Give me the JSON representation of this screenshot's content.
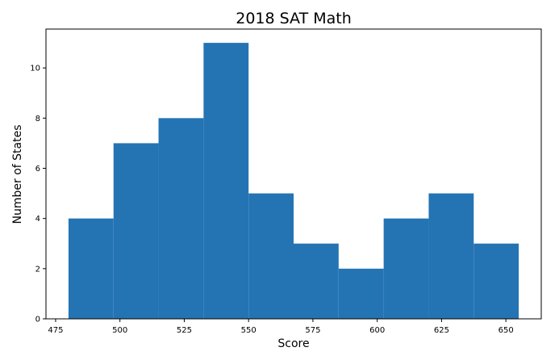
{
  "chart_data": {
    "type": "bar",
    "title": "2018 SAT Math",
    "xlabel": "Score",
    "ylabel": "Number of States",
    "bin_edges": [
      480,
      497.5,
      515,
      532.5,
      550,
      567.5,
      585,
      602.5,
      620,
      637.5,
      655
    ],
    "values": [
      4,
      7,
      8,
      11,
      5,
      3,
      2,
      4,
      5,
      3
    ],
    "xlim": [
      471.25,
      663.75
    ],
    "ylim": [
      0,
      11.55
    ],
    "x_ticks": [
      475,
      500,
      525,
      550,
      575,
      600,
      625,
      650
    ],
    "y_ticks": [
      0,
      2,
      4,
      6,
      8,
      10
    ],
    "bar_color": "#2474b4",
    "grid": false,
    "legend": "none"
  }
}
